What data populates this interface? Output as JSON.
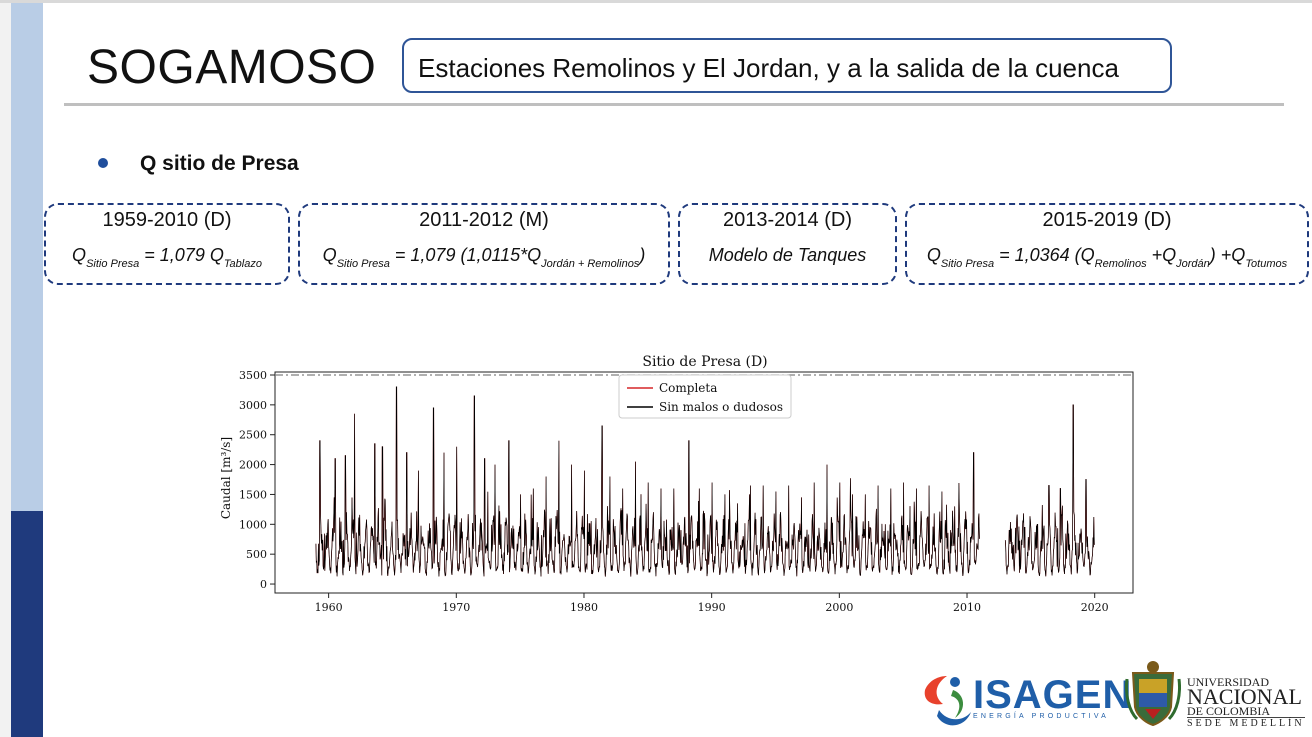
{
  "slide": {
    "title": "SOGAMOSO",
    "subtitle": "Estaciones Remolinos y El Jordan, y a la salida de la cuenca",
    "bullet": "Q sitio de Presa"
  },
  "periods": [
    {
      "header": "1959-2010 (D)",
      "parts": [
        {
          "t": "Q"
        },
        {
          "s": "Sitio Presa"
        },
        {
          "t": " = 1,079 Q"
        },
        {
          "s": "Tablazo"
        }
      ]
    },
    {
      "header": "2011-2012 (M)",
      "parts": [
        {
          "t": "Q"
        },
        {
          "s": "Sitio Presa"
        },
        {
          "t": " = 1,079 (1,0115*Q"
        },
        {
          "s": "Jordán + Remolinos"
        },
        {
          "t": ")"
        }
      ]
    },
    {
      "header": "2013-2014 (D)",
      "parts": [
        {
          "t": "Modelo de Tanques"
        }
      ]
    },
    {
      "header": "2015-2019 (D)",
      "parts": [
        {
          "t": "Q"
        },
        {
          "s": "Sitio Presa"
        },
        {
          "t": " = 1,0364 (Q"
        },
        {
          "s": "Remolinos"
        },
        {
          "t": " +Q"
        },
        {
          "s": "Jordán"
        },
        {
          "t": ") +Q"
        },
        {
          "s": "Totumos"
        }
      ]
    }
  ],
  "chart_data": {
    "type": "line",
    "title": "Sitio de Presa (D)",
    "xlabel": "",
    "ylabel": "Caudal [m³/s]",
    "xlim": [
      1955.8,
      2023.0
    ],
    "ylim": [
      -150,
      3550
    ],
    "xticks": [
      1960,
      1970,
      1980,
      1990,
      2000,
      2010,
      2020
    ],
    "yticks": [
      0,
      500,
      1000,
      1500,
      2000,
      2500,
      3000,
      3500
    ],
    "hline": 3500,
    "legend_position": "top-center",
    "colors": {
      "completa": "#d62728",
      "sin_malos": "#000000",
      "hline": "#808080"
    },
    "series": [
      {
        "name": "Completa",
        "segments": [
          [
            1959.0,
            2011.0
          ],
          [
            2013.0,
            2020.0
          ]
        ]
      },
      {
        "name": "Sin malos o dudosos",
        "segments": [
          [
            1959.0,
            2011.0
          ],
          [
            2013.0,
            2020.0
          ]
        ],
        "annual_peaks": [
          [
            1959.3,
            2400
          ],
          [
            1960.5,
            2100
          ],
          [
            1961.3,
            2150
          ],
          [
            1962.0,
            2850
          ],
          [
            1963.0,
            2050
          ],
          [
            1963.6,
            2350
          ],
          [
            1964.2,
            2300
          ],
          [
            1965.3,
            3300
          ],
          [
            1966.1,
            2200
          ],
          [
            1967.0,
            1900
          ],
          [
            1968.2,
            2950
          ],
          [
            1969.0,
            2200
          ],
          [
            1970.0,
            2300
          ],
          [
            1971.4,
            3150
          ],
          [
            1972.2,
            2100
          ],
          [
            1973.0,
            2000
          ],
          [
            1974.1,
            2400
          ],
          [
            1975.0,
            1500
          ],
          [
            1976.0,
            1600
          ],
          [
            1977.0,
            1800
          ],
          [
            1978.0,
            2400
          ],
          [
            1979.0,
            2000
          ],
          [
            1980.0,
            1900
          ],
          [
            1981.4,
            2650
          ],
          [
            1982.0,
            1800
          ],
          [
            1983.0,
            1600
          ],
          [
            1984.0,
            2050
          ],
          [
            1985.0,
            1700
          ],
          [
            1986.0,
            1600
          ],
          [
            1987.0,
            1600
          ],
          [
            1988.2,
            2400
          ],
          [
            1989.0,
            1600
          ],
          [
            1990.0,
            1700
          ],
          [
            1991.0,
            1500
          ],
          [
            1992.0,
            1350
          ],
          [
            1993.0,
            1650
          ],
          [
            1994.0,
            1650
          ],
          [
            1995.0,
            1550
          ],
          [
            1996.0,
            1650
          ],
          [
            1997.0,
            1450
          ],
          [
            1998.0,
            1700
          ],
          [
            1999.0,
            2000
          ],
          [
            2000.0,
            1700
          ],
          [
            2001.0,
            1500
          ],
          [
            2002.0,
            1500
          ],
          [
            2003.0,
            1650
          ],
          [
            2004.0,
            1600
          ],
          [
            2005.0,
            1700
          ],
          [
            2006.0,
            1600
          ],
          [
            2007.0,
            1650
          ],
          [
            2008.0,
            1550
          ],
          [
            2009.0,
            1300
          ],
          [
            2010.5,
            2200
          ],
          [
            2013.3,
            900
          ],
          [
            2014.5,
            950
          ],
          [
            2015.5,
            1000
          ],
          [
            2016.4,
            1650
          ],
          [
            2017.3,
            1600
          ],
          [
            2018.3,
            3000
          ],
          [
            2019.3,
            1750
          ]
        ]
      }
    ]
  },
  "logos": {
    "isagen": "ISAGEN",
    "isagen_tagline": "ENERGÍA PRODUCTIVA",
    "un_line1": "UNIVERSIDAD",
    "un_line2": "NACIONAL",
    "un_line3": "DE COLOMBIA",
    "un_line4": "SEDE MEDELLÍN"
  }
}
